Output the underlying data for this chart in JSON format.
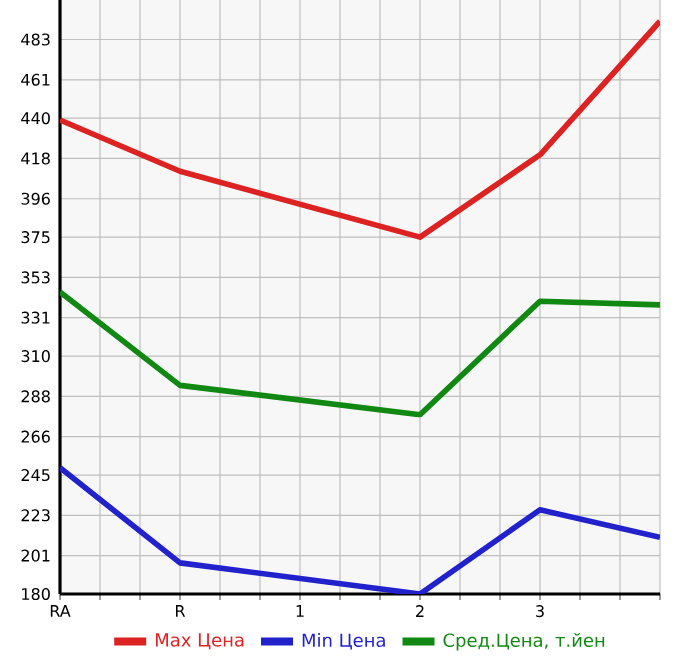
{
  "chart_data": {
    "type": "line",
    "categories": [
      "RA",
      "R",
      "1",
      "2",
      "3",
      null
    ],
    "series": [
      {
        "name": "Max Цена",
        "color": "#dd2222",
        "values": [
          439,
          411,
          null,
          375,
          420,
          493
        ]
      },
      {
        "name": "Min Цена",
        "color": "#2222cc",
        "values": [
          249,
          197,
          null,
          180,
          226,
          211
        ]
      },
      {
        "name": "Сред.Цена, т.йен",
        "color": "#118811",
        "values": [
          345,
          294,
          null,
          278,
          340,
          338
        ]
      }
    ],
    "ylim": [
      180,
      504.6
    ],
    "yticks": [
      180,
      201,
      223,
      245,
      266,
      288,
      310,
      331,
      353,
      375,
      396,
      418,
      440,
      461,
      483
    ],
    "grid": true,
    "legend": "bottom",
    "marker": "none",
    "line_style": "solid"
  }
}
